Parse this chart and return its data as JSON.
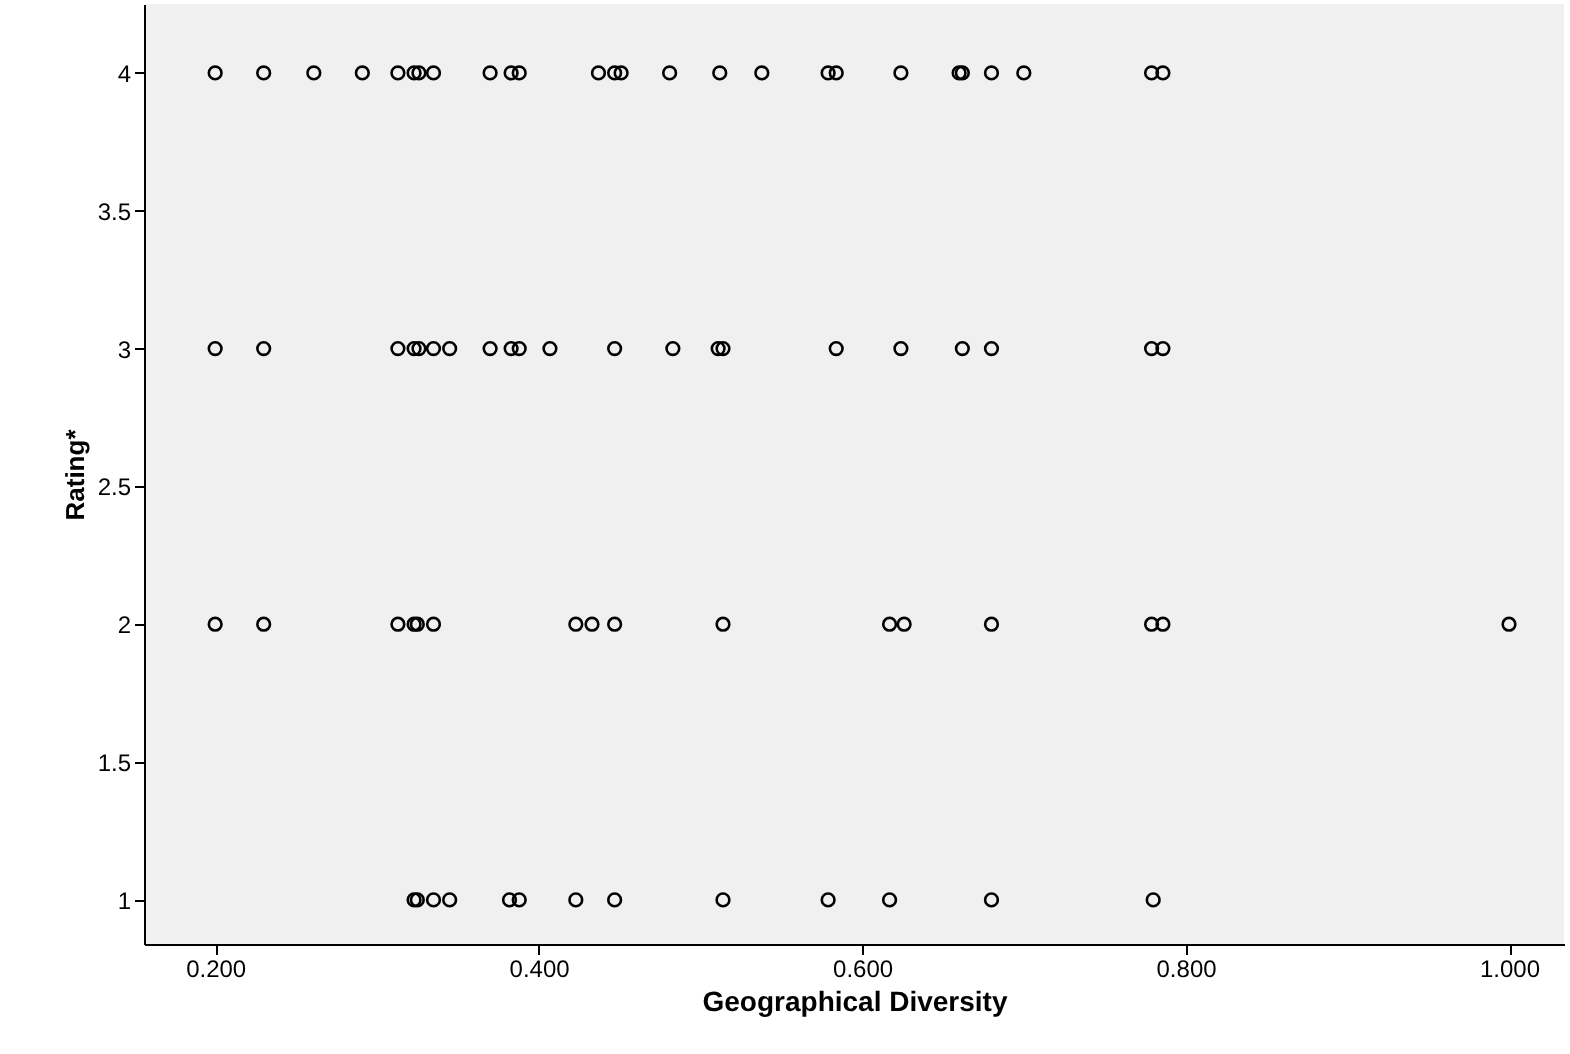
{
  "chart_data": {
    "type": "scatter",
    "xlabel": "Geographical Diversity",
    "ylabel": "Rating*",
    "xlim": [
      0.156,
      1.034
    ],
    "ylim": [
      0.84,
      4.25
    ],
    "xticks": [
      {
        "value": 0.2,
        "label": "0.200"
      },
      {
        "value": 0.4,
        "label": "0.400"
      },
      {
        "value": 0.6,
        "label": "0.600"
      },
      {
        "value": 0.8,
        "label": "0.800"
      },
      {
        "value": 1.0,
        "label": "1.000"
      }
    ],
    "yticks": [
      1,
      1.5,
      2,
      2.5,
      3,
      3.5,
      4
    ],
    "grid": false,
    "marker": "circle",
    "series": [
      {
        "color": "#000000",
        "x": [
          0.2,
          0.23,
          0.261,
          0.291,
          0.313,
          0.323,
          0.326,
          0.335,
          0.37,
          0.383,
          0.388,
          0.437,
          0.447,
          0.451,
          0.481,
          0.512,
          0.538,
          0.579,
          0.584,
          0.624,
          0.66,
          0.662,
          0.68,
          0.7,
          0.779,
          0.786,
          0.2,
          0.23,
          0.313,
          0.323,
          0.326,
          0.335,
          0.345,
          0.37,
          0.383,
          0.388,
          0.407,
          0.447,
          0.483,
          0.511,
          0.514,
          0.584,
          0.624,
          0.662,
          0.68,
          0.779,
          0.786,
          0.2,
          0.23,
          0.313,
          0.323,
          0.325,
          0.335,
          0.423,
          0.433,
          0.447,
          0.514,
          0.617,
          0.626,
          0.68,
          0.779,
          0.786,
          1.0,
          0.323,
          0.325,
          0.335,
          0.345,
          0.382,
          0.388,
          0.423,
          0.447,
          0.514,
          0.579,
          0.617,
          0.68,
          0.78
        ],
        "values": [
          4,
          4,
          4,
          4,
          4,
          4,
          4,
          4,
          4,
          4,
          4,
          4,
          4,
          4,
          4,
          4,
          4,
          4,
          4,
          4,
          4,
          4,
          4,
          4,
          4,
          4,
          3,
          3,
          3,
          3,
          3,
          3,
          3,
          3,
          3,
          3,
          3,
          3,
          3,
          3,
          3,
          3,
          3,
          3,
          3,
          3,
          3,
          2,
          2,
          2,
          2,
          2,
          2,
          2,
          2,
          2,
          2,
          2,
          2,
          2,
          2,
          2,
          2,
          1,
          1,
          1,
          1,
          1,
          1,
          1,
          1,
          1,
          1,
          1,
          1,
          1
        ]
      }
    ]
  }
}
